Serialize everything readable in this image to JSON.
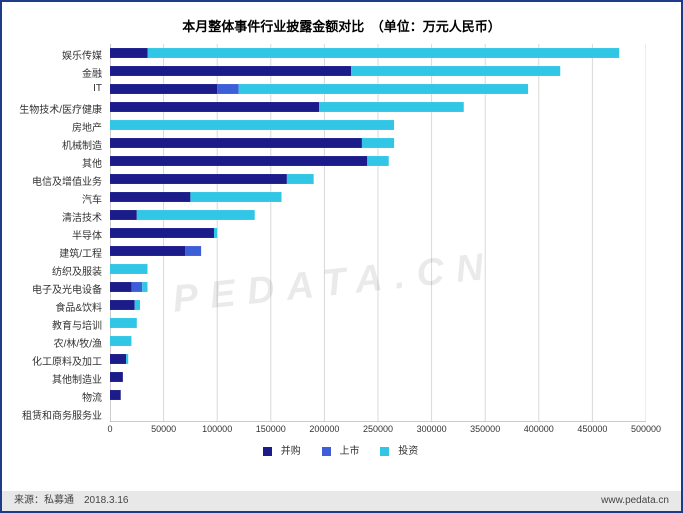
{
  "title": "本月整体事件行业披露金额对比　（单位：万元人民币）",
  "chart": {
    "type": "stacked-horizontal-bar",
    "xlim": [
      0,
      500000
    ],
    "xtick_step": 50000,
    "xticks": [
      0,
      50000,
      100000,
      150000,
      200000,
      250000,
      300000,
      350000,
      400000,
      450000,
      500000
    ],
    "background_color": "#ffffff",
    "grid_color": "#d9d9d9",
    "bar_height_ratio": 0.55,
    "series": [
      {
        "key": "并购",
        "color": "#1b1b8a"
      },
      {
        "key": "上市",
        "color": "#3c5fd9"
      },
      {
        "key": "投资",
        "color": "#32c6e6"
      }
    ],
    "categories": [
      {
        "label": "娱乐传媒",
        "v": [
          35000,
          0,
          440000
        ]
      },
      {
        "label": "金融",
        "v": [
          225000,
          0,
          195000
        ]
      },
      {
        "label": "IT",
        "v": [
          100000,
          20000,
          270000
        ]
      },
      {
        "label": "生物技术/医疗健康",
        "v": [
          195000,
          0,
          135000
        ]
      },
      {
        "label": "房地产",
        "v": [
          0,
          0,
          265000
        ]
      },
      {
        "label": "机械制造",
        "v": [
          235000,
          0,
          30000
        ]
      },
      {
        "label": "其他",
        "v": [
          240000,
          0,
          20000
        ]
      },
      {
        "label": "电信及增值业务",
        "v": [
          165000,
          0,
          25000
        ]
      },
      {
        "label": "汽车",
        "v": [
          75000,
          0,
          85000
        ]
      },
      {
        "label": "清洁技术",
        "v": [
          25000,
          0,
          110000
        ]
      },
      {
        "label": "半导体",
        "v": [
          97000,
          0,
          3000
        ]
      },
      {
        "label": "建筑/工程",
        "v": [
          70000,
          15000,
          0
        ]
      },
      {
        "label": "纺织及服装",
        "v": [
          0,
          0,
          35000
        ]
      },
      {
        "label": "电子及光电设备",
        "v": [
          20000,
          10000,
          5000
        ]
      },
      {
        "label": "食品&饮料",
        "v": [
          23000,
          0,
          5000
        ]
      },
      {
        "label": "教育与培训",
        "v": [
          0,
          0,
          25000
        ]
      },
      {
        "label": "农/林/牧/渔",
        "v": [
          0,
          0,
          20000
        ]
      },
      {
        "label": "化工原料及加工",
        "v": [
          15000,
          0,
          2000
        ]
      },
      {
        "label": "其他制造业",
        "v": [
          12000,
          0,
          0
        ]
      },
      {
        "label": "物流",
        "v": [
          10000,
          0,
          0
        ]
      },
      {
        "label": "租赁和商务服务业",
        "v": [
          0,
          0,
          0
        ]
      }
    ]
  },
  "legend": {
    "items": [
      {
        "label": "并购",
        "color": "#1b1b8a"
      },
      {
        "label": "上市",
        "color": "#3c5fd9"
      },
      {
        "label": "投资",
        "color": "#32c6e6"
      }
    ]
  },
  "watermark": "PEDATA.CN",
  "footer": {
    "left": "来源：私募通　2018.3.16",
    "right": "www.pedata.cn"
  },
  "label_fontsize": 10,
  "axis_fontsize": 9
}
